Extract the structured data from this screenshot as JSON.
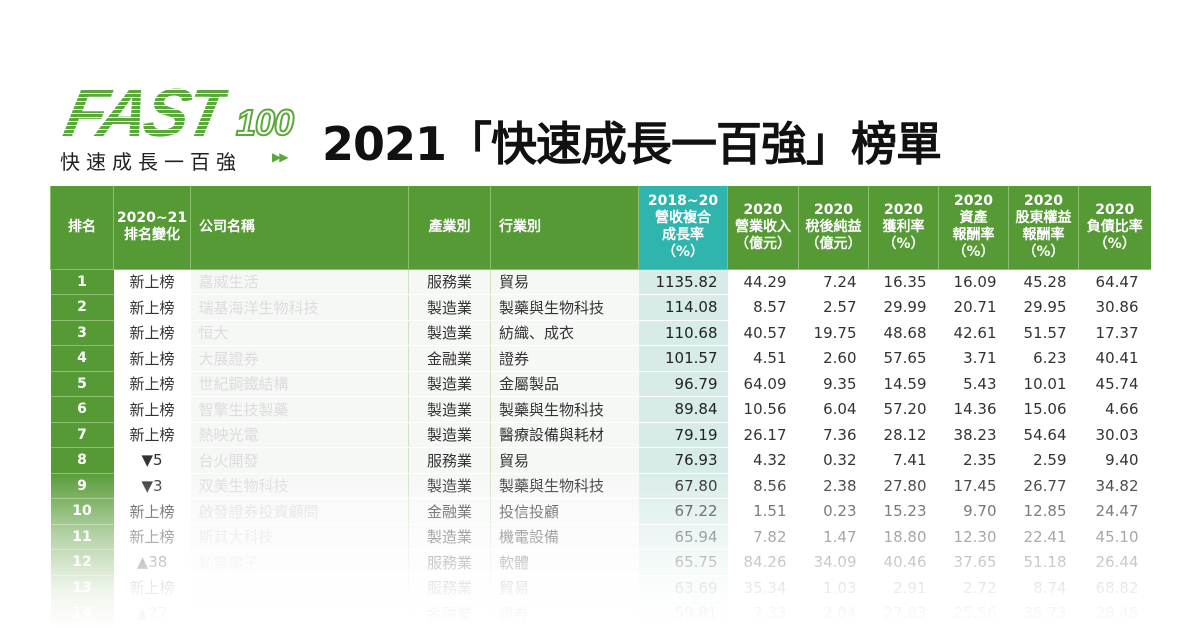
{
  "logo": {
    "wordmark": "FAST",
    "number": "100",
    "subtitle": "快速成長一百強",
    "arrows": "▶▶"
  },
  "title": "2021「快速成長一百強」榜單",
  "colors": {
    "header_green": "#559a35",
    "header_teal": "#2fb5ae",
    "teal_cell": "#d7ece8"
  },
  "headers": [
    "排名",
    "2020~21\n排名變化",
    "公司名稱",
    "產業別",
    "行業別",
    "2018~20\n營收複合\n成長率\n（%）",
    "2020\n營業收入\n（億元）",
    "2020\n稅後純益\n（億元）",
    "2020\n獲利率\n（%）",
    "2020\n資產\n報酬率\n（%）",
    "2020\n股東權益\n報酬率\n（%）",
    "2020\n負債比率\n（%）"
  ],
  "rows": [
    [
      "1",
      "新上榜",
      "嘉威生活",
      "服務業",
      "貿易",
      "1135.82",
      "44.29",
      "7.24",
      "16.35",
      "16.09",
      "45.28",
      "64.47"
    ],
    [
      "2",
      "新上榜",
      "瑞基海洋生物科技",
      "製造業",
      "製藥與生物科技",
      "114.08",
      "8.57",
      "2.57",
      "29.99",
      "20.71",
      "29.95",
      "30.86"
    ],
    [
      "3",
      "新上榜",
      "恒大",
      "製造業",
      "紡織、成衣",
      "110.68",
      "40.57",
      "19.75",
      "48.68",
      "42.61",
      "51.57",
      "17.37"
    ],
    [
      "4",
      "新上榜",
      "大展證券",
      "金融業",
      "證券",
      "101.57",
      "4.51",
      "2.60",
      "57.65",
      "3.71",
      "6.23",
      "40.41"
    ],
    [
      "5",
      "新上榜",
      "世紀鋼鐵結構",
      "製造業",
      "金屬製品",
      "96.79",
      "64.09",
      "9.35",
      "14.59",
      "5.43",
      "10.01",
      "45.74"
    ],
    [
      "6",
      "新上榜",
      "智擎生技製藥",
      "製造業",
      "製藥與生物科技",
      "89.84",
      "10.56",
      "6.04",
      "57.20",
      "14.36",
      "15.06",
      "4.66"
    ],
    [
      "7",
      "新上榜",
      "熱映光電",
      "製造業",
      "醫療設備與耗材",
      "79.19",
      "26.17",
      "7.36",
      "28.12",
      "38.23",
      "54.64",
      "30.03"
    ],
    [
      "8",
      "▼5",
      "台火開發",
      "服務業",
      "貿易",
      "76.93",
      "4.32",
      "0.32",
      "7.41",
      "2.35",
      "2.59",
      "9.40"
    ],
    [
      "9",
      "▼3",
      "双美生物科技",
      "製造業",
      "製藥與生物科技",
      "67.80",
      "8.56",
      "2.38",
      "27.80",
      "17.45",
      "26.77",
      "34.82"
    ],
    [
      "10",
      "新上榜",
      "啟發證券投資顧問",
      "金融業",
      "投信投顧",
      "67.22",
      "1.51",
      "0.23",
      "15.23",
      "9.70",
      "12.85",
      "24.47"
    ],
    [
      "11",
      "新上榜",
      "斯其大科技",
      "製造業",
      "機電設備",
      "65.94",
      "7.82",
      "1.47",
      "18.80",
      "12.30",
      "22.41",
      "45.10"
    ],
    [
      "12",
      "▲38",
      "鈊象電子",
      "服務業",
      "軟體",
      "65.75",
      "84.26",
      "34.09",
      "40.46",
      "37.65",
      "51.18",
      "26.44"
    ],
    [
      "13",
      "新上榜",
      "",
      "服務業",
      "貿易",
      "63.69",
      "35.34",
      "1.03",
      "2.91",
      "2.72",
      "8.74",
      "68.82"
    ],
    [
      "14",
      "▲27",
      "",
      "金融業",
      "證券",
      "59.81",
      "7.33",
      "2.04",
      "27.83",
      "25.56",
      "35.73",
      "28.45"
    ]
  ]
}
